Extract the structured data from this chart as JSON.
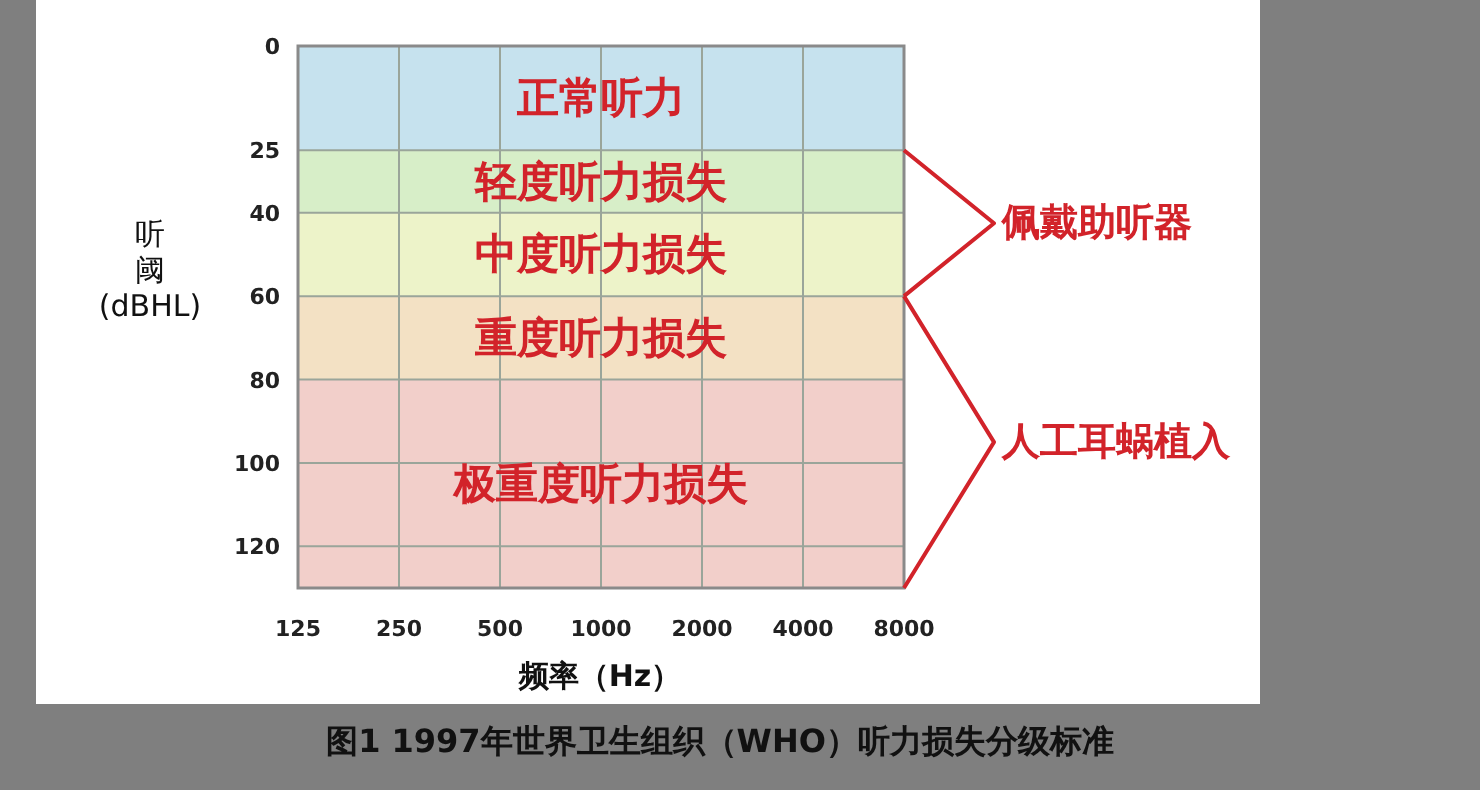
{
  "chart_data": {
    "type": "line",
    "title": "图1 1997年世界卫生组织（WHO）听力损失分级标准",
    "xlabel": "频率（Hz）",
    "ylabel": "听阈(dBHL)",
    "log": "x",
    "xlim": [
      125,
      8000
    ],
    "xticks": [
      125,
      250,
      500,
      1000,
      2000,
      4000,
      8000
    ],
    "ylim": [
      130,
      0
    ],
    "yticks": [
      0,
      25,
      40,
      60,
      80,
      100,
      120
    ],
    "grid": true,
    "bands": [
      {
        "axis": "y",
        "from": 0,
        "to": 25,
        "label": "正常听力",
        "color": "#c6e2ee"
      },
      {
        "axis": "y",
        "from": 25,
        "to": 40,
        "label": "轻度听力损失",
        "color": "#d7eec8"
      },
      {
        "axis": "y",
        "from": 40,
        "to": 60,
        "label": "中度听力损失",
        "color": "#edf3c9"
      },
      {
        "axis": "y",
        "from": 60,
        "to": 80,
        "label": "重度听力损失",
        "color": "#f3e1c4"
      },
      {
        "axis": "y",
        "from": 80,
        "to": 130,
        "label": "极重度听力损失",
        "color": "#f2cfca"
      }
    ],
    "annotations": [
      "佩戴助听器",
      "人工耳蜗植入"
    ]
  }
}
